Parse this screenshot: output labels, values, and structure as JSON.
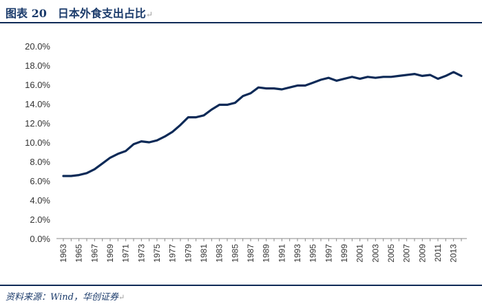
{
  "header": {
    "title": "图表 20　日本外食支出占比",
    "title_mark": "↵"
  },
  "source": {
    "text": "资料来源：Wind，华创证券",
    "mark": "↵"
  },
  "colors": {
    "line": "#0d2a57",
    "rule": "#0f2b57",
    "title": "#1b3b6b"
  },
  "chart_data": {
    "type": "line",
    "title": "",
    "xlabel": "",
    "ylabel": "",
    "ylim": [
      0,
      20
    ],
    "yticks": [
      "0.0%",
      "2.0%",
      "4.0%",
      "6.0%",
      "8.0%",
      "10.0%",
      "12.0%",
      "14.0%",
      "16.0%",
      "18.0%",
      "20.0%"
    ],
    "xticks": [
      "1963",
      "1965",
      "1967",
      "1969",
      "1971",
      "1973",
      "1975",
      "1977",
      "1979",
      "1981",
      "1983",
      "1985",
      "1987",
      "1989",
      "1991",
      "1993",
      "1995",
      "1997",
      "1999",
      "2001",
      "2003",
      "2005",
      "2007",
      "2009",
      "2011",
      "2013"
    ],
    "grid": false,
    "x": [
      1963,
      1964,
      1965,
      1966,
      1967,
      1968,
      1969,
      1970,
      1971,
      1972,
      1973,
      1974,
      1975,
      1976,
      1977,
      1978,
      1979,
      1980,
      1981,
      1982,
      1983,
      1984,
      1985,
      1986,
      1987,
      1988,
      1989,
      1990,
      1991,
      1992,
      1993,
      1994,
      1995,
      1996,
      1997,
      1998,
      1999,
      2000,
      2001,
      2002,
      2003,
      2004,
      2005,
      2006,
      2007,
      2008,
      2009,
      2010,
      2011,
      2012,
      2013,
      2014
    ],
    "series": [
      {
        "values": [
          6.5,
          6.5,
          6.6,
          6.8,
          7.2,
          7.8,
          8.4,
          8.8,
          9.1,
          9.8,
          10.1,
          10.0,
          10.2,
          10.6,
          11.1,
          11.8,
          12.6,
          12.6,
          12.8,
          13.4,
          13.9,
          13.9,
          14.1,
          14.8,
          15.1,
          15.7,
          15.6,
          15.6,
          15.5,
          15.7,
          15.9,
          15.9,
          16.2,
          16.5,
          16.7,
          16.4,
          16.6,
          16.8,
          16.6,
          16.8,
          16.7,
          16.8,
          16.8,
          16.9,
          17.0,
          17.1,
          16.9,
          17.0,
          16.6,
          16.9,
          17.3,
          16.9
        ]
      }
    ]
  }
}
